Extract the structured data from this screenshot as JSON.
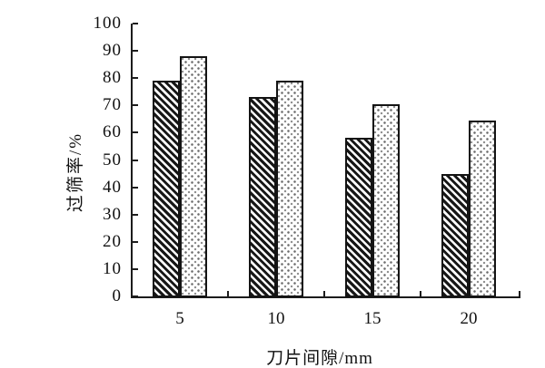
{
  "chart_data": {
    "type": "bar",
    "title": "",
    "xlabel": "刀片间隙/mm",
    "ylabel": "过筛率/%",
    "categories": [
      "5",
      "10",
      "15",
      "20"
    ],
    "series": [
      {
        "name": "series-1-diagonal-hatched",
        "pattern": "diagonal-hatch",
        "values": [
          79,
          73,
          58,
          45
        ]
      },
      {
        "name": "series-2-dotted",
        "pattern": "dot-fill",
        "values": [
          88,
          79,
          70.5,
          64.5
        ]
      }
    ],
    "ylim": [
      0,
      100
    ],
    "yticks": [
      0,
      10,
      20,
      30,
      40,
      50,
      60,
      70,
      80,
      90,
      100
    ],
    "grid": false,
    "legend": "none",
    "colors": {
      "ink": "#1c1c1c",
      "background": "#ffffff"
    }
  }
}
